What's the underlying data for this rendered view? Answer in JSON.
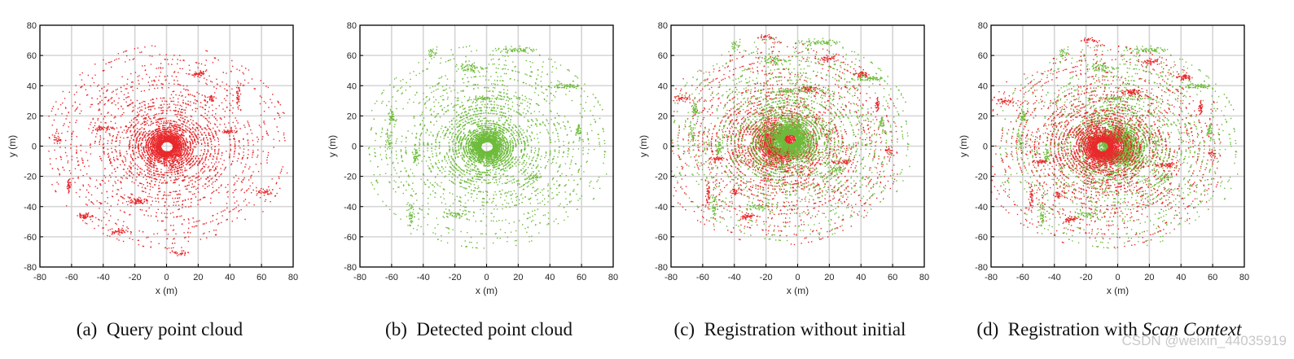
{
  "colors": {
    "query": "#e8292c",
    "detected": "#6dbb3a",
    "grid": "#d4d4d4",
    "axes": "#000000"
  },
  "watermark": "CSDN @weixin_44035919",
  "chart_data": [
    {
      "type": "scatter",
      "caption_label": "(a)",
      "caption_text": "Query point cloud",
      "caption_italic": "",
      "xlabel": "x (m)",
      "ylabel": "y (m)",
      "xlim": [
        -80,
        80
      ],
      "ylim": [
        -80,
        80
      ],
      "xticks": [
        -80,
        -60,
        -40,
        -20,
        0,
        20,
        40,
        60,
        80
      ],
      "yticks": [
        -80,
        -60,
        -40,
        -20,
        0,
        20,
        40,
        60,
        80
      ],
      "grid": true,
      "series": [
        {
          "color": "#e8292c",
          "cloud": "query",
          "offset": [
            0,
            0
          ],
          "rotation_deg": 0
        }
      ]
    },
    {
      "type": "scatter",
      "caption_label": "(b)",
      "caption_text": "Detected point cloud",
      "caption_italic": "",
      "xlabel": "x (m)",
      "ylabel": "y (m)",
      "xlim": [
        -80,
        80
      ],
      "ylim": [
        -80,
        80
      ],
      "xticks": [
        -80,
        -60,
        -40,
        -20,
        0,
        20,
        40,
        60,
        80
      ],
      "yticks": [
        -80,
        -60,
        -40,
        -20,
        0,
        20,
        40,
        60,
        80
      ],
      "grid": true,
      "series": [
        {
          "color": "#6dbb3a",
          "cloud": "detected",
          "offset": [
            0,
            0
          ],
          "rotation_deg": 0
        }
      ]
    },
    {
      "type": "scatter",
      "caption_label": "(c)",
      "caption_text": "Registration without initial",
      "caption_italic": "",
      "xlabel": "x (m)",
      "ylabel": "y (m)",
      "xlim": [
        -80,
        80
      ],
      "ylim": [
        -80,
        80
      ],
      "xticks": [
        -80,
        -60,
        -40,
        -20,
        0,
        20,
        40,
        60,
        80
      ],
      "yticks": [
        -80,
        -60,
        -40,
        -20,
        0,
        20,
        40,
        60,
        80
      ],
      "grid": true,
      "series": [
        {
          "color": "#e8292c",
          "cloud": "query",
          "offset": [
            -12,
            2
          ],
          "rotation_deg": 180
        },
        {
          "color": "#6dbb3a",
          "cloud": "detected",
          "offset": [
            -5,
            5
          ],
          "rotation_deg": 0
        }
      ]
    },
    {
      "type": "scatter",
      "caption_label": "(d)",
      "caption_text": "Registration with ",
      "caption_italic": "Scan Context",
      "xlabel": "x (m)",
      "ylabel": "y (m)",
      "xlim": [
        -80,
        80
      ],
      "ylim": [
        -80,
        80
      ],
      "xticks": [
        -80,
        -60,
        -40,
        -20,
        0,
        20,
        40,
        60,
        80
      ],
      "yticks": [
        -80,
        -60,
        -40,
        -20,
        0,
        20,
        40,
        60,
        80
      ],
      "grid": true,
      "series": [
        {
          "color": "#6dbb3a",
          "cloud": "detected",
          "offset": [
            0,
            0
          ],
          "rotation_deg": 0
        },
        {
          "color": "#e8292c",
          "cloud": "query",
          "offset": [
            -10,
            0
          ],
          "rotation_deg": 180
        }
      ]
    }
  ]
}
